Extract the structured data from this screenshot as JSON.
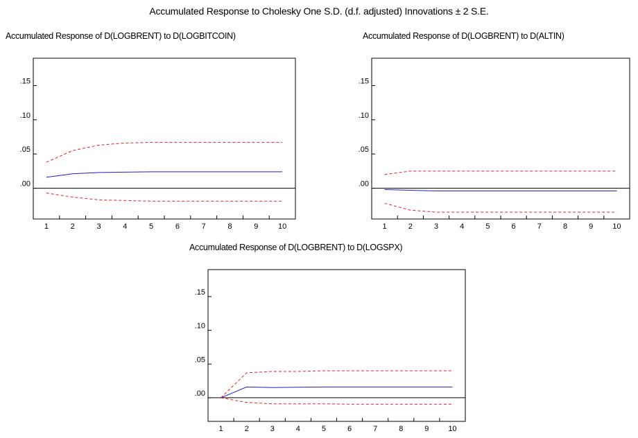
{
  "main_title": "Accumulated Response to Cholesky One S.D. (d.f. adjusted) Innovations ± 2 S.E.",
  "chart_data": [
    {
      "type": "line",
      "title": "Accumulated Response of D(LOGBRENT) to D(LOGBITCOIN)",
      "x": [
        1,
        2,
        3,
        4,
        5,
        6,
        7,
        8,
        9,
        10
      ],
      "ylim": [
        -0.045,
        0.19
      ],
      "yticks": [
        ".15",
        ".10",
        ".05",
        ".00"
      ],
      "ytick_values": [
        0.15,
        0.1,
        0.05,
        0.0
      ],
      "grid": false,
      "series": [
        {
          "role": "response",
          "color": "#1f1fd0",
          "dash": false,
          "values": [
            0.016,
            0.021,
            0.023,
            0.0235,
            0.024,
            0.024,
            0.024,
            0.024,
            0.024,
            0.024
          ]
        },
        {
          "role": "upper",
          "color": "#e02020",
          "dash": true,
          "values": [
            0.038,
            0.055,
            0.063,
            0.066,
            0.067,
            0.067,
            0.067,
            0.067,
            0.067,
            0.067
          ]
        },
        {
          "role": "lower",
          "color": "#e02020",
          "dash": true,
          "values": [
            -0.007,
            -0.013,
            -0.017,
            -0.018,
            -0.019,
            -0.019,
            -0.019,
            -0.019,
            -0.019,
            -0.019
          ]
        }
      ]
    },
    {
      "type": "line",
      "title": "Accumulated Response of D(LOGBRENT) to D(ALTIN)",
      "x": [
        1,
        2,
        3,
        4,
        5,
        6,
        7,
        8,
        9,
        10
      ],
      "ylim": [
        -0.045,
        0.19
      ],
      "yticks": [
        ".15",
        ".10",
        ".05",
        ".00"
      ],
      "ytick_values": [
        0.15,
        0.1,
        0.05,
        0.0
      ],
      "grid": false,
      "series": [
        {
          "role": "response",
          "color": "#1f1fd0",
          "dash": false,
          "values": [
            -0.002,
            -0.003,
            -0.004,
            -0.004,
            -0.004,
            -0.004,
            -0.004,
            -0.004,
            -0.004,
            -0.004
          ]
        },
        {
          "role": "upper",
          "color": "#e02020",
          "dash": true,
          "values": [
            0.02,
            0.025,
            0.025,
            0.025,
            0.025,
            0.025,
            0.025,
            0.025,
            0.025,
            0.025
          ]
        },
        {
          "role": "lower",
          "color": "#e02020",
          "dash": true,
          "values": [
            -0.022,
            -0.032,
            -0.035,
            -0.035,
            -0.035,
            -0.035,
            -0.035,
            -0.035,
            -0.035,
            -0.035
          ]
        }
      ]
    },
    {
      "type": "line",
      "title": "Accumulated Response of D(LOGBRENT) to D(LOGSPX)",
      "x": [
        1,
        2,
        3,
        4,
        5,
        6,
        7,
        8,
        9,
        10
      ],
      "ylim": [
        -0.035,
        0.19
      ],
      "yticks": [
        ".15",
        ".10",
        ".05",
        ".00"
      ],
      "ytick_values": [
        0.15,
        0.1,
        0.05,
        0.0
      ],
      "grid": false,
      "series": [
        {
          "role": "response",
          "color": "#1f1fd0",
          "dash": false,
          "values": [
            0.0,
            0.016,
            0.015,
            0.0155,
            0.016,
            0.016,
            0.016,
            0.016,
            0.016,
            0.016
          ]
        },
        {
          "role": "upper",
          "color": "#e02020",
          "dash": true,
          "values": [
            0.0,
            0.037,
            0.039,
            0.039,
            0.04,
            0.04,
            0.04,
            0.04,
            0.04,
            0.04
          ]
        },
        {
          "role": "lower",
          "color": "#e02020",
          "dash": true,
          "values": [
            0.0,
            -0.007,
            -0.009,
            -0.009,
            -0.009,
            -0.0095,
            -0.0095,
            -0.0095,
            -0.0095,
            -0.0095
          ]
        }
      ]
    }
  ]
}
